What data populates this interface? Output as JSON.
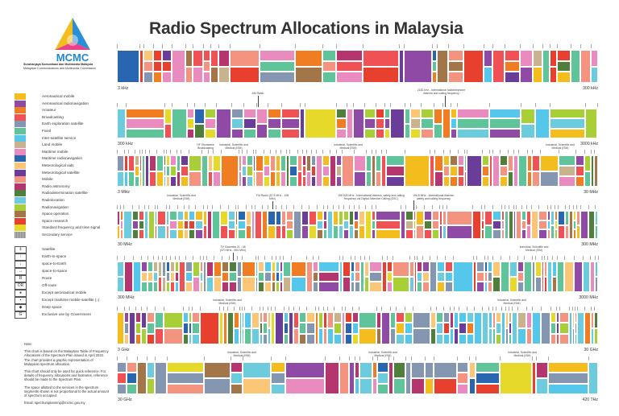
{
  "title": "Radio Spectrum Allocations in Malaysia",
  "logo": {
    "text": "MCMC",
    "line1": "Suruhanjaya Komunikasi dan Multimedia Malaysia",
    "line2": "Malaysian Communications and Multimedia Commission"
  },
  "legend": {
    "services": [
      {
        "label": "Aeronautical mobile",
        "color": "#f2bd1d"
      },
      {
        "label": "Aeronautical radionavigation",
        "color": "#8e4aa5"
      },
      {
        "label": "Amateur",
        "color": "#f07d22"
      },
      {
        "label": "Broadcasting",
        "color": "#ef5155"
      },
      {
        "label": "Earth exploration satellite",
        "color": "#8597b0"
      },
      {
        "label": "Fixed",
        "color": "#5fc49a"
      },
      {
        "label": "Inter-satellite service",
        "color": "#54c7ea"
      },
      {
        "label": "Land mobile",
        "color": "#c9b38f"
      },
      {
        "label": "Maritime mobile",
        "color": "#e98bbf"
      },
      {
        "label": "Maritime radionavigation",
        "color": "#2866b1"
      },
      {
        "label": "Meteorological aids",
        "color": "#fcc677"
      },
      {
        "label": "Meteorological satellite",
        "color": "#6a3d9a"
      },
      {
        "label": "Mobile",
        "color": "#f4937f"
      },
      {
        "label": "Radio astronomy",
        "color": "#b5356f"
      },
      {
        "label": "Radiodetermination satellite",
        "color": "#4f7f3b"
      },
      {
        "label": "Radiolocation",
        "color": "#6ccbdc"
      },
      {
        "label": "Radionavigation",
        "color": "#a8cf38"
      },
      {
        "label": "Space operation",
        "color": "#a3764a"
      },
      {
        "label": "Space research",
        "color": "#e8402f"
      },
      {
        "label": "Standard frequency and time signal",
        "color": "#e6d92a"
      },
      {
        "label": "Secondary service",
        "color": "#9a9a9a"
      }
    ],
    "symbols": [
      {
        "glyph": "⇕",
        "label": "Satellite"
      },
      {
        "glyph": "↑",
        "label": "Earth-to-space"
      },
      {
        "glyph": "↓",
        "label": "space-to-Earth"
      },
      {
        "glyph": "↔",
        "label": "space-to-space"
      },
      {
        "glyph": "R",
        "label": "Route"
      },
      {
        "glyph": "OR",
        "label": "Off-route"
      },
      {
        "glyph": "●",
        "label": "Except aeronautical mobile"
      },
      {
        "glyph": "▪",
        "label": "Except maritime mobile satellite (↓)"
      },
      {
        "glyph": "◆",
        "label": "Deep space"
      },
      {
        "glyph": "G",
        "label": "Exclusive use by Government"
      }
    ]
  },
  "note": {
    "heading": "Note:",
    "p1": "This chart is based on the Malaysian Table of Frequency Allocations of the Spectrum Plan issued in April 2022. The chart provides a graphic representation of Malaysian spectrum allocation.",
    "p2": "This chart should only be used for quick reference. For details of frequency allocations and footnotes, reference should be made to the Spectrum Plan.",
    "p3": "The space allotted to the services in the spectrum segments shown is not proportional to the actual amount of spectrum occupied.",
    "email": "Email: spectrumplanning@mcmc.gov.my"
  },
  "rows": [
    {
      "start": "3 kHz",
      "end": "300 kHz"
    },
    {
      "start": "300 kHz",
      "end": "3000 kHz"
    },
    {
      "start": "3 MHz",
      "end": "30 MHz"
    },
    {
      "start": "30 MHz",
      "end": "300 MHz"
    },
    {
      "start": "300 MHz",
      "end": "3000 MHz"
    },
    {
      "start": "3 GHz",
      "end": "30 GHz"
    },
    {
      "start": "30 GHz",
      "end": "420 THz"
    }
  ],
  "annotations": {
    "am": "AM Radio",
    "distress2182": "2182 kHz - International radiotelephone distress and calling frequency",
    "hf": "HF Shortwave Broadcasting",
    "ism": "Industrial, Scientific and Medical (ISM)",
    "fm": "FM Radio (87.5 MHz - 108 MHz)",
    "dsc": "156.525 MHz - International distress, safety and calling frequency via Digital Selective Calling (DSC)",
    "distress1568": "156.8 MHz - International distress, safety and calling frequency",
    "tv": "TV Channels 21 - 48 (470 MHz - 694 MHz)"
  }
}
